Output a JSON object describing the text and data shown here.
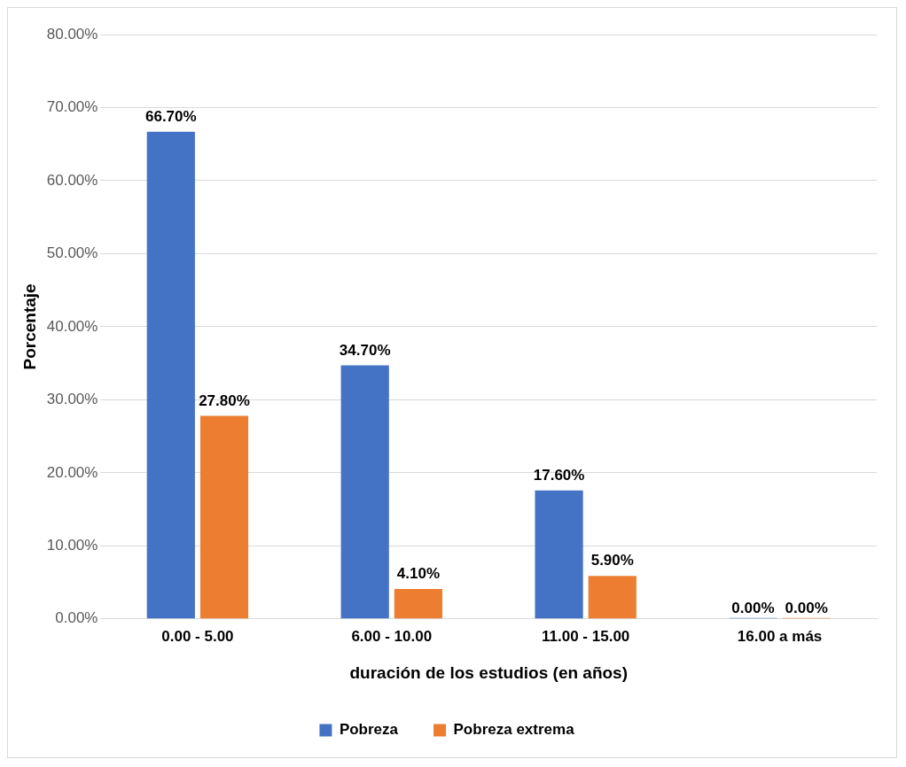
{
  "chart_data": {
    "type": "bar",
    "xlabel": "duración de los estudios (en años)",
    "ylabel": "Porcentaje",
    "categories": [
      "0.00 - 5.00",
      "6.00 - 10.00",
      "11.00 - 15.00",
      "16.00 a más"
    ],
    "series": [
      {
        "name": "Pobreza",
        "color": "#4472c4",
        "values": [
          66.7,
          34.7,
          17.6,
          0
        ],
        "value_labels": [
          "66.70%",
          "34.70%",
          "17.60%",
          "0.00%"
        ]
      },
      {
        "name": "Pobreza extrema",
        "color": "#ed7d31",
        "values": [
          27.8,
          4.1,
          5.9,
          0
        ],
        "value_labels": [
          "27.80%",
          "4.10%",
          "5.90%",
          "0.00%"
        ]
      }
    ],
    "ylim": [
      0,
      80
    ],
    "yticks": [
      {
        "value": 0,
        "label": "0.00%"
      },
      {
        "value": 10,
        "label": "10.00%"
      },
      {
        "value": 20,
        "label": "20.00%"
      },
      {
        "value": 30,
        "label": "30.00%"
      },
      {
        "value": 40,
        "label": "40.00%"
      },
      {
        "value": 50,
        "label": "50.00%"
      },
      {
        "value": 60,
        "label": "60.00%"
      },
      {
        "value": 70,
        "label": "70.00%"
      },
      {
        "value": 80,
        "label": "80.00%"
      }
    ],
    "grid": "y",
    "legend": "bottom"
  }
}
